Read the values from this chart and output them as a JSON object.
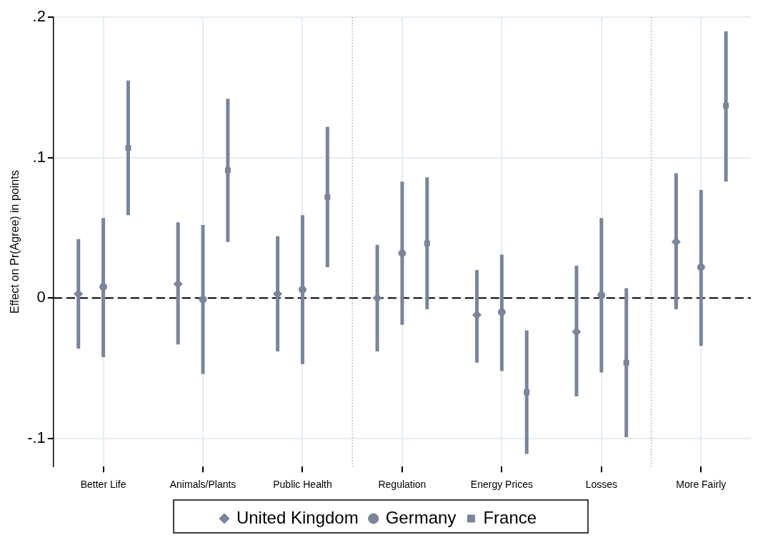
{
  "chart_data": {
    "type": "scatter",
    "ylabel": "Effect on Pr(Agree) in points",
    "categories": [
      "Better Life",
      "Animals/Plants",
      "Public Health",
      "Regulation",
      "Energy Prices",
      "Losses",
      "More Fairly"
    ],
    "series": [
      {
        "name": "United Kingdom",
        "color": "#7a8599",
        "marker": "diamond",
        "values": [
          0.003,
          0.01,
          0.003,
          0.0,
          -0.012,
          -0.024,
          0.04
        ],
        "errors": [
          [
            -0.036,
            0.042
          ],
          [
            -0.033,
            0.054
          ],
          [
            -0.038,
            0.044
          ],
          [
            -0.038,
            0.038
          ],
          [
            -0.046,
            0.02
          ],
          [
            -0.07,
            0.023
          ],
          [
            -0.008,
            0.089
          ]
        ]
      },
      {
        "name": "Germany",
        "color": "#7a8599",
        "marker": "circle",
        "values": [
          0.008,
          -0.001,
          0.006,
          0.032,
          -0.01,
          0.002,
          0.022
        ],
        "errors": [
          [
            -0.042,
            0.057
          ],
          [
            -0.054,
            0.052
          ],
          [
            -0.047,
            0.059
          ],
          [
            -0.019,
            0.083
          ],
          [
            -0.052,
            0.031
          ],
          [
            -0.053,
            0.057
          ],
          [
            -0.034,
            0.077
          ]
        ]
      },
      {
        "name": "France",
        "color": "#7a8599",
        "marker": "square",
        "values": [
          0.107,
          0.091,
          0.072,
          0.039,
          -0.067,
          -0.046,
          0.137
        ],
        "errors": [
          [
            0.059,
            0.155
          ],
          [
            0.04,
            0.142
          ],
          [
            0.022,
            0.122
          ],
          [
            -0.008,
            0.086
          ],
          [
            -0.111,
            -0.023
          ],
          [
            -0.099,
            0.007
          ],
          [
            0.083,
            0.19
          ]
        ]
      }
    ],
    "ylim": [
      -0.12,
      0.2
    ],
    "yticks": [
      {
        "value": -0.1,
        "label": "-.1"
      },
      {
        "value": 0,
        "label": "0"
      },
      {
        "value": 0.1,
        "label": ".1"
      },
      {
        "value": 0.2,
        "label": ".2"
      }
    ],
    "ref_lines": [
      {
        "axis": "y",
        "value": 0,
        "color": "#000000",
        "line_style": "dashed"
      }
    ],
    "grid": true,
    "legend": "bottom"
  }
}
